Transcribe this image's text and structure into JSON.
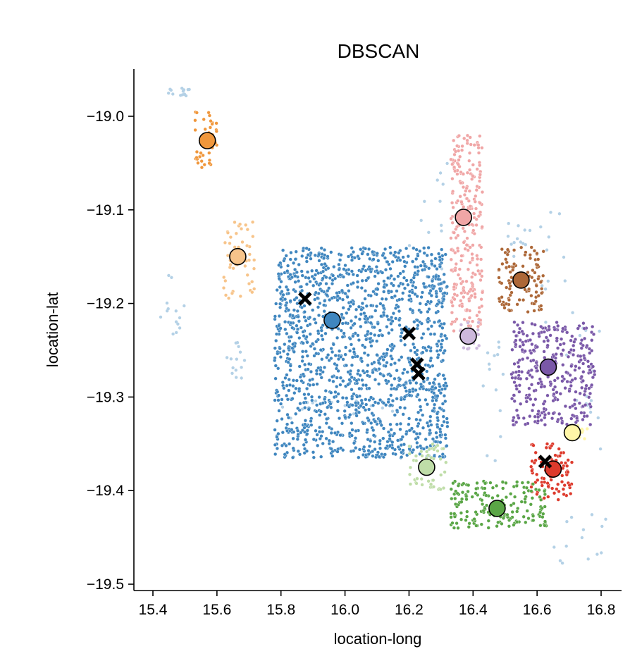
{
  "chart_data": {
    "type": "scatter",
    "title": "DBSCAN",
    "xlabel": "location-long",
    "ylabel": "location-lat",
    "xlim": [
      15.34,
      16.87
    ],
    "ylim": [
      -19.505,
      -18.95
    ],
    "xticks": [
      "15.4",
      "15.6",
      "15.8",
      "16.0",
      "16.2",
      "16.4",
      "16.6",
      "16.8"
    ],
    "yticks": [
      "−19.0",
      "−19.1",
      "−19.2",
      "−19.3",
      "−19.4",
      "−19.5"
    ],
    "xtick_values": [
      15.4,
      15.6,
      15.8,
      16.0,
      16.2,
      16.4,
      16.6,
      16.8
    ],
    "ytick_values": [
      -19.0,
      -19.1,
      -19.2,
      -19.3,
      -19.4,
      -19.5
    ],
    "grid": false,
    "legend": "none",
    "clusters": [
      {
        "color": "#f0973c",
        "centroid": [
          15.57,
          -19.026
        ],
        "extent": [
          [
            15.53,
            15.6
          ],
          [
            -19.055,
            -18.995
          ]
        ],
        "n": 45
      },
      {
        "color": "#f7c48a",
        "centroid": [
          15.665,
          -19.15
        ],
        "extent": [
          [
            15.62,
            15.72
          ],
          [
            -19.195,
            -19.11
          ]
        ],
        "n": 50
      },
      {
        "color": "#3f86bf",
        "centroid": [
          15.96,
          -19.218
        ],
        "extent": [
          [
            15.78,
            16.32
          ],
          [
            -19.365,
            -19.14
          ]
        ],
        "n": 1500
      },
      {
        "color": "#f0a6a6",
        "centroid": [
          16.37,
          -19.108
        ],
        "extent": [
          [
            16.33,
            16.43
          ],
          [
            -19.23,
            -19.02
          ]
        ],
        "n": 260
      },
      {
        "color": "#ad6838",
        "centroid": [
          16.55,
          -19.175
        ],
        "extent": [
          [
            16.48,
            16.62
          ],
          [
            -19.21,
            -19.14
          ]
        ],
        "n": 110
      },
      {
        "color": "#cdb8dc",
        "centroid": [
          16.385,
          -19.235
        ],
        "extent": [
          [
            16.36,
            16.42
          ],
          [
            -19.25,
            -19.22
          ]
        ],
        "n": 25
      },
      {
        "color": "#7a58a8",
        "centroid": [
          16.635,
          -19.268
        ],
        "extent": [
          [
            16.52,
            16.78
          ],
          [
            -19.33,
            -19.22
          ]
        ],
        "n": 330
      },
      {
        "color": "#fff6a8",
        "centroid": [
          16.71,
          -19.338
        ],
        "extent": [
          [
            16.68,
            16.76
          ],
          [
            -19.345,
            -19.33
          ]
        ],
        "n": 15
      },
      {
        "color": "#dd3a2c",
        "centroid": [
          16.65,
          -19.377
        ],
        "extent": [
          [
            16.58,
            16.71
          ],
          [
            -19.41,
            -19.35
          ]
        ],
        "n": 90
      },
      {
        "color": "#bfdda8",
        "centroid": [
          16.255,
          -19.375
        ],
        "extent": [
          [
            16.2,
            16.32
          ],
          [
            -19.4,
            -19.35
          ]
        ],
        "n": 50
      },
      {
        "color": "#5aa646",
        "centroid": [
          16.475,
          -19.419
        ],
        "extent": [
          [
            16.33,
            16.63
          ],
          [
            -19.44,
            -19.39
          ]
        ],
        "n": 180
      }
    ],
    "noise_color": "#b4d1e6",
    "noise_regions": [
      {
        "x": [
          15.44,
          15.52
        ],
        "y": [
          -18.98,
          -18.97
        ]
      },
      {
        "x": [
          15.41,
          15.5
        ],
        "y": [
          -19.24,
          -19.16
        ]
      },
      {
        "x": [
          15.63,
          15.7
        ],
        "y": [
          -19.28,
          -19.24
        ]
      },
      {
        "x": [
          15.8,
          16.15
        ],
        "y": [
          -19.33,
          -19.3
        ]
      },
      {
        "x": [
          16.2,
          16.35
        ],
        "y": [
          -19.18,
          -19.05
        ]
      },
      {
        "x": [
          16.5,
          16.58
        ],
        "y": [
          -19.15,
          -19.11
        ]
      },
      {
        "x": [
          16.6,
          16.72
        ],
        "y": [
          -19.26,
          -19.1
        ]
      },
      {
        "x": [
          16.72,
          16.8
        ],
        "y": [
          -19.36,
          -19.22
        ]
      },
      {
        "x": [
          16.43,
          16.5
        ],
        "y": [
          -19.38,
          -19.24
        ]
      },
      {
        "x": [
          16.64,
          16.85
        ],
        "y": [
          -19.48,
          -19.42
        ]
      }
    ],
    "x_markers": [
      [
        15.875,
        -19.195
      ],
      [
        16.2,
        -19.232
      ],
      [
        16.225,
        -19.265
      ],
      [
        16.23,
        -19.275
      ],
      [
        16.625,
        -19.369
      ]
    ]
  }
}
